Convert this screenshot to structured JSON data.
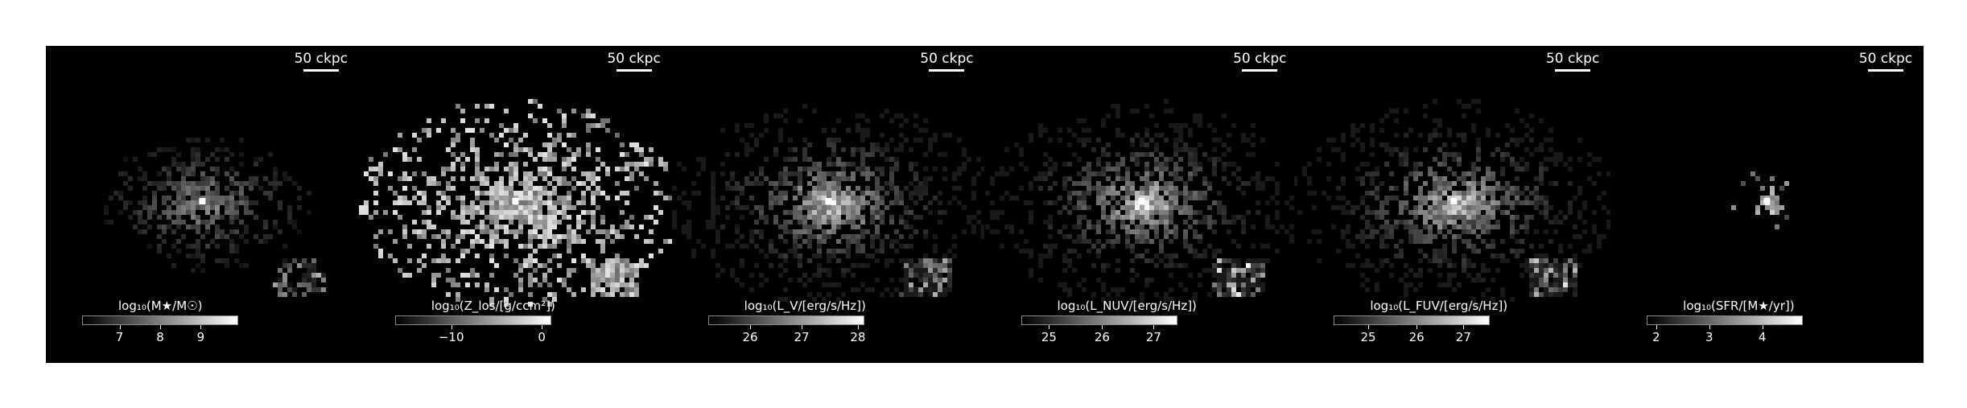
{
  "panels": [
    {
      "scale_label": "50 ckpc",
      "cbar_label": "log₁₀(M★/M☉)",
      "ticks": [
        "7",
        "8",
        "9"
      ],
      "tick_pos": [
        0.24,
        0.5,
        0.76
      ],
      "morph": "stellar"
    },
    {
      "scale_label": "50 ckpc",
      "cbar_label": "log₁₀(Z_los/[g/ccm²])",
      "ticks": [
        "−10",
        "0"
      ],
      "tick_pos": [
        0.36,
        0.94
      ],
      "morph": "metal"
    },
    {
      "scale_label": "50 ckpc",
      "cbar_label": "log₁₀(L_V/[erg/s/Hz])",
      "ticks": [
        "26",
        "27",
        "28"
      ],
      "tick_pos": [
        0.27,
        0.6,
        0.96
      ],
      "morph": "lum"
    },
    {
      "scale_label": "50 ckpc",
      "cbar_label": "log₁₀(L_NUV/[erg/s/Hz])",
      "ticks": [
        "25",
        "26",
        "27"
      ],
      "tick_pos": [
        0.18,
        0.52,
        0.85
      ],
      "morph": "lum"
    },
    {
      "scale_label": "50 ckpc",
      "cbar_label": "log₁₀(L_FUV/[erg/s/Hz])",
      "ticks": [
        "25",
        "26",
        "27"
      ],
      "tick_pos": [
        0.22,
        0.53,
        0.83
      ],
      "morph": "lum"
    },
    {
      "scale_label": "50 ckpc",
      "cbar_label": "log₁₀(SFR/[M★/yr])",
      "ticks": [
        "2",
        "3",
        "4"
      ],
      "tick_pos": [
        0.06,
        0.4,
        0.74
      ],
      "morph": "sfr"
    }
  ]
}
